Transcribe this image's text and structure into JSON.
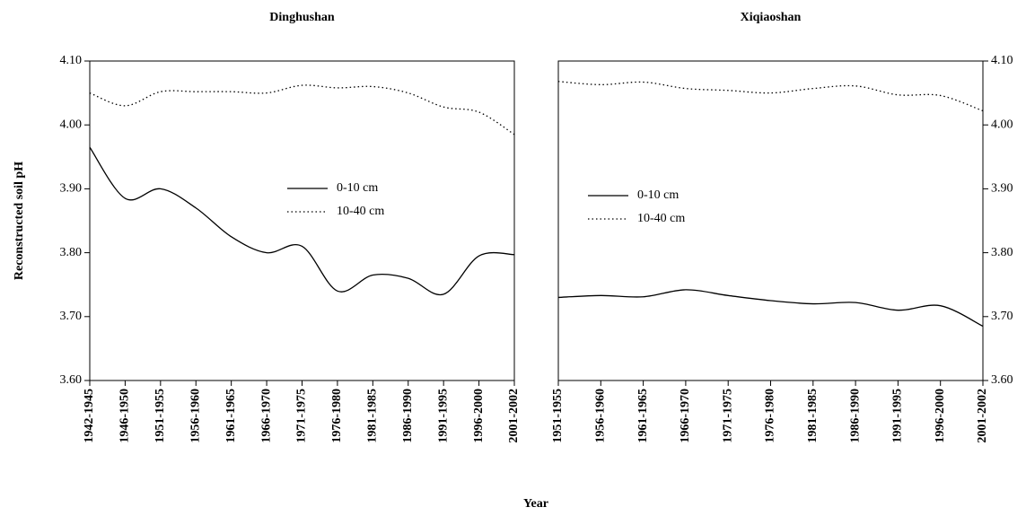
{
  "ylabel": "Reconstructed soil pH",
  "xlabel": "Year",
  "chart_data": [
    {
      "type": "line",
      "title": "Dinghushan",
      "yaxis_side": "left",
      "categories": [
        "1942-1945",
        "1946-1950",
        "1951-1955",
        "1956-1960",
        "1961-1965",
        "1966-1970",
        "1971-1975",
        "1976-1980",
        "1981-1985",
        "1986-1990",
        "1991-1995",
        "1996-2000",
        "2001-2002"
      ],
      "series": [
        {
          "name": "0-10 cm",
          "color": "#000000",
          "dash": "solid",
          "values": [
            3.965,
            3.885,
            3.9,
            3.87,
            3.825,
            3.8,
            3.81,
            3.74,
            3.765,
            3.76,
            3.735,
            3.795,
            3.797
          ]
        },
        {
          "name": "10-40 cm",
          "color": "#000000",
          "dash": "dotted",
          "values": [
            4.05,
            4.03,
            4.052,
            4.052,
            4.052,
            4.05,
            4.062,
            4.058,
            4.06,
            4.05,
            4.028,
            4.02,
            3.985
          ]
        }
      ],
      "ylim": [
        3.6,
        4.1
      ],
      "yticks": [
        {
          "value": 3.6,
          "label": "3.60"
        },
        {
          "value": 3.7,
          "label": "3.70"
        },
        {
          "value": 3.8,
          "label": "3.80"
        },
        {
          "value": 3.9,
          "label": "3.90"
        },
        {
          "value": 4.0,
          "label": "4.00"
        },
        {
          "value": 4.1,
          "label": "4.10"
        }
      ]
    },
    {
      "type": "line",
      "title": "Xiqiaoshan",
      "yaxis_side": "right",
      "categories": [
        "1951-1955",
        "1956-1960",
        "1961-1965",
        "1966-1970",
        "1971-1975",
        "1976-1980",
        "1981-1985",
        "1986-1990",
        "1991-1995",
        "1996-2000",
        "2001-2002"
      ],
      "series": [
        {
          "name": "0-10 cm",
          "color": "#000000",
          "dash": "solid",
          "values": [
            3.73,
            3.733,
            3.731,
            3.742,
            3.733,
            3.725,
            3.72,
            3.722,
            3.71,
            3.717,
            3.685
          ]
        },
        {
          "name": "10-40 cm",
          "color": "#000000",
          "dash": "dotted",
          "values": [
            4.068,
            4.063,
            4.067,
            4.057,
            4.054,
            4.05,
            4.057,
            4.061,
            4.047,
            4.046,
            4.022
          ]
        }
      ],
      "ylim": [
        3.6,
        4.1
      ],
      "yticks": [
        {
          "value": 3.6,
          "label": "3.60"
        },
        {
          "value": 3.7,
          "label": "3.70"
        },
        {
          "value": 3.8,
          "label": "3.80"
        },
        {
          "value": 3.9,
          "label": "3.90"
        },
        {
          "value": 4.0,
          "label": "4.00"
        },
        {
          "value": 4.1,
          "label": "4.10"
        }
      ]
    }
  ]
}
